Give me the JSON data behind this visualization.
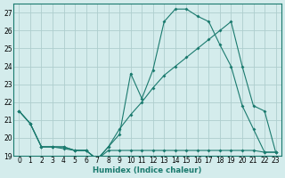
{
  "xlabel": "Humidex (Indice chaleur)",
  "x": [
    0,
    1,
    2,
    3,
    4,
    5,
    6,
    7,
    8,
    9,
    10,
    11,
    12,
    13,
    14,
    15,
    16,
    17,
    18,
    19,
    20,
    21,
    22,
    23
  ],
  "line_max": [
    21.5,
    20.8,
    19.5,
    19.5,
    19.5,
    19.3,
    19.3,
    18.8,
    19.5,
    20.2,
    23.6,
    22.2,
    23.8,
    26.5,
    27.2,
    27.2,
    26.8,
    26.5,
    25.2,
    24.0,
    21.8,
    20.5,
    19.2,
    19.2
  ],
  "line_mean": [
    21.5,
    20.8,
    19.5,
    19.5,
    19.5,
    19.3,
    19.3,
    18.8,
    19.5,
    20.5,
    21.3,
    22.0,
    22.8,
    23.5,
    24.0,
    24.5,
    25.0,
    25.5,
    26.0,
    26.5,
    24.0,
    21.8,
    21.5,
    19.2
  ],
  "line_min": [
    21.5,
    20.8,
    19.5,
    19.5,
    19.4,
    19.3,
    19.3,
    18.8,
    19.3,
    19.3,
    19.3,
    19.3,
    19.3,
    19.3,
    19.3,
    19.3,
    19.3,
    19.3,
    19.3,
    19.3,
    19.3,
    19.3,
    19.2,
    19.2
  ],
  "line_color": "#1a7a6e",
  "bg_color": "#d4ecec",
  "grid_color": "#aecece",
  "ylim_min": 19,
  "ylim_max": 27.5,
  "yticks": [
    19,
    20,
    21,
    22,
    23,
    24,
    25,
    26,
    27
  ],
  "tick_fontsize": 5.5,
  "xlabel_fontsize": 6.2
}
